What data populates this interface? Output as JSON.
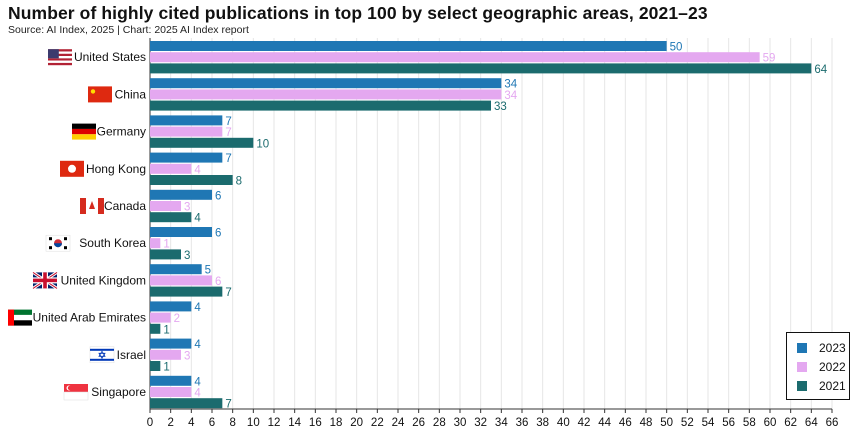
{
  "title": "Number of highly cited publications in top 100 by select geographic areas, 2021–23",
  "source": "Source: AI Index, 2025 | Chart: 2025 AI Index report",
  "colors": {
    "2023": "#1f77b4",
    "2022": "#e4a8f0",
    "2021": "#1b6b6e",
    "grid": "#e6e6e6",
    "axis": "#333333"
  },
  "flags": [
    "us-flag-icon",
    "china-flag-icon",
    "germany-flag-icon",
    "hong-kong-flag-icon",
    "canada-flag-icon",
    "south-korea-flag-icon",
    "united-kingdom-flag-icon",
    "uae-flag-icon",
    "israel-flag-icon",
    "singapore-flag-icon"
  ],
  "chart_data": {
    "type": "bar",
    "orientation": "horizontal",
    "title": "Number of highly cited publications in top 100 by select geographic areas, 2021–23",
    "categories": [
      "United States",
      "China",
      "Germany",
      "Hong Kong",
      "Canada",
      "South Korea",
      "United Kingdom",
      "United Arab Emirates",
      "Israel",
      "Singapore"
    ],
    "series": [
      {
        "name": "2023",
        "values": [
          50,
          34,
          7,
          7,
          6,
          6,
          5,
          4,
          4,
          4
        ]
      },
      {
        "name": "2022",
        "values": [
          59,
          34,
          7,
          4,
          3,
          1,
          6,
          2,
          3,
          4
        ]
      },
      {
        "name": "2021",
        "values": [
          64,
          33,
          10,
          8,
          4,
          3,
          7,
          1,
          1,
          7
        ]
      }
    ],
    "xlim": [
      0,
      66
    ],
    "xticks": [
      0,
      2,
      4,
      6,
      8,
      10,
      12,
      14,
      16,
      18,
      20,
      22,
      24,
      26,
      28,
      30,
      32,
      34,
      36,
      38,
      40,
      42,
      44,
      46,
      48,
      50,
      52,
      54,
      56,
      58,
      60,
      62,
      64,
      66
    ],
    "legend": [
      "2023",
      "2022",
      "2021"
    ],
    "legend_position": "bottom-right",
    "grid": true
  }
}
